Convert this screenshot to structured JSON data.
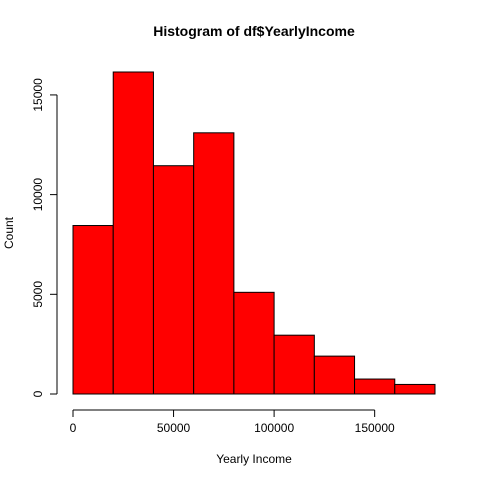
{
  "chart_data": {
    "type": "bar",
    "title": "Histogram of df$YearlyIncome",
    "xlabel": "Yearly Income",
    "ylabel": "Count",
    "bar_color": "#ff0000",
    "edge_color": "#000000",
    "bins": [
      {
        "start": 0,
        "end": 20000,
        "count": 8450
      },
      {
        "start": 20000,
        "end": 40000,
        "count": 16150
      },
      {
        "start": 40000,
        "end": 60000,
        "count": 11450
      },
      {
        "start": 60000,
        "end": 80000,
        "count": 13100
      },
      {
        "start": 80000,
        "end": 100000,
        "count": 5100
      },
      {
        "start": 100000,
        "end": 120000,
        "count": 2950
      },
      {
        "start": 120000,
        "end": 140000,
        "count": 1900
      },
      {
        "start": 140000,
        "end": 160000,
        "count": 750
      },
      {
        "start": 160000,
        "end": 180000,
        "count": 480
      }
    ],
    "x_ticks": [
      0,
      50000,
      100000,
      150000
    ],
    "x_tick_labels": [
      "0",
      "50000",
      "100000",
      "150000"
    ],
    "y_ticks": [
      0,
      5000,
      10000,
      15000
    ],
    "y_tick_labels": [
      "0",
      "5000",
      "10000",
      "15000"
    ],
    "xlim": [
      0,
      180000
    ],
    "ylim": [
      0,
      16150
    ],
    "grid": false,
    "legend": "none"
  }
}
